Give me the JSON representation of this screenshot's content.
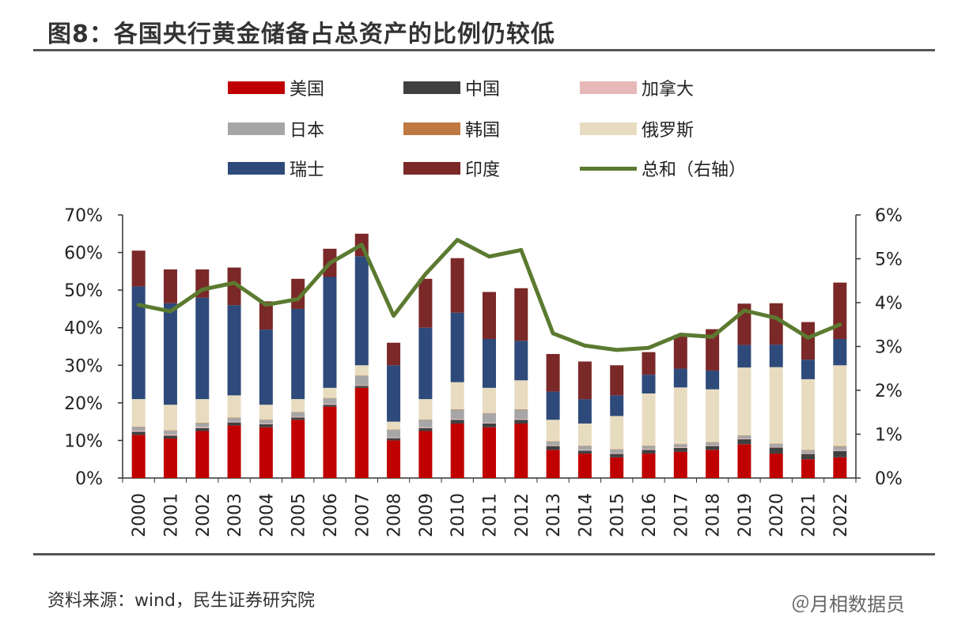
{
  "title": "图8：各国央行黄金储备占总资产的比例仍较低",
  "source": "资料来源：wind，民生证券研究院",
  "watermark": "＠月相数据员",
  "chart_data": {
    "type": "bar",
    "stacked": true,
    "categories": [
      "2000",
      "2001",
      "2002",
      "2003",
      "2004",
      "2005",
      "2006",
      "2007",
      "2008",
      "2009",
      "2010",
      "2011",
      "2012",
      "2013",
      "2014",
      "2015",
      "2016",
      "2017",
      "2018",
      "2019",
      "2020",
      "2021",
      "2022"
    ],
    "left_axis": {
      "min": 0,
      "max": 70,
      "ticks": [
        "0%",
        "10%",
        "20%",
        "30%",
        "40%",
        "50%",
        "60%",
        "70%"
      ]
    },
    "right_axis": {
      "min": 0,
      "max": 6,
      "ticks": [
        "0%",
        "1%",
        "2%",
        "3%",
        "4%",
        "5%",
        "6%"
      ]
    },
    "series": [
      {
        "name": "美国",
        "color": "#c00000",
        "values": [
          11.5,
          10.5,
          12.5,
          14.0,
          13.5,
          15.5,
          19.0,
          24.0,
          10.0,
          12.5,
          14.5,
          13.5,
          14.5,
          7.5,
          6.5,
          5.5,
          6.5,
          7.0,
          7.5,
          9.0,
          6.5,
          5.0,
          5.5
        ]
      },
      {
        "name": "中国",
        "color": "#404040",
        "values": [
          0.8,
          0.8,
          0.8,
          0.8,
          0.8,
          0.6,
          0.5,
          0.5,
          0.6,
          0.8,
          1.0,
          1.0,
          1.0,
          1.0,
          0.8,
          0.9,
          1.0,
          1.0,
          1.0,
          1.3,
          1.6,
          1.4,
          1.7
        ]
      },
      {
        "name": "加拿大",
        "color": "#e6b8b7",
        "values": [
          0.3,
          0.3,
          0.3,
          0.2,
          0.2,
          0.2,
          0.2,
          0.2,
          0.2,
          0.2,
          0.2,
          0.2,
          0.2,
          0.2,
          0.2,
          0.2,
          0.2,
          0.2,
          0.2,
          0.2,
          0.2,
          0.2,
          0.2
        ]
      },
      {
        "name": "日本",
        "color": "#a6a6a6",
        "values": [
          1.0,
          1.0,
          1.0,
          1.0,
          1.0,
          1.2,
          1.5,
          2.5,
          2.0,
          2.0,
          2.5,
          2.5,
          2.5,
          1.0,
          1.0,
          1.0,
          0.8,
          0.8,
          0.8,
          0.8,
          0.8,
          0.8,
          1.0
        ]
      },
      {
        "name": "韩国",
        "color": "#c07841",
        "values": [
          0.1,
          0.1,
          0.1,
          0.1,
          0.1,
          0.1,
          0.1,
          0.1,
          0.1,
          0.1,
          0.1,
          0.1,
          0.1,
          0.1,
          0.1,
          0.1,
          0.1,
          0.1,
          0.1,
          0.1,
          0.1,
          0.1,
          0.1
        ]
      },
      {
        "name": "俄罗斯",
        "color": "#e8dcc0",
        "values": [
          7.3,
          6.8,
          6.3,
          5.9,
          3.9,
          3.4,
          2.7,
          2.7,
          2.1,
          5.4,
          7.2,
          6.7,
          7.7,
          5.7,
          5.9,
          8.8,
          13.9,
          15.0,
          14.0,
          18.0,
          20.3,
          18.8,
          21.5
        ]
      },
      {
        "name": "瑞士",
        "color": "#2e4a7a",
        "values": [
          30.0,
          27.0,
          27.0,
          24.0,
          20.0,
          24.0,
          29.5,
          29.0,
          15.0,
          19.0,
          18.5,
          13.0,
          10.5,
          7.5,
          6.5,
          5.5,
          5.0,
          5.0,
          5.0,
          6.0,
          6.0,
          5.2,
          7.0
        ]
      },
      {
        "name": "印度",
        "color": "#7b2828",
        "values": [
          9.5,
          9.0,
          7.5,
          10.0,
          7.5,
          8.0,
          7.5,
          6.0,
          6.0,
          13.0,
          14.5,
          12.5,
          14.0,
          10.0,
          10.0,
          8.0,
          6.0,
          9.0,
          11.0,
          11.0,
          11.0,
          10.0,
          15.0
        ]
      }
    ],
    "line": {
      "name": "总和（右轴）",
      "color": "#5b7a30",
      "axis": "right",
      "values": [
        3.95,
        3.8,
        4.3,
        4.45,
        3.95,
        4.08,
        4.9,
        5.32,
        3.7,
        4.65,
        5.43,
        5.05,
        5.2,
        3.3,
        3.02,
        2.92,
        2.97,
        3.27,
        3.22,
        3.82,
        3.65,
        3.2,
        3.5
      ]
    }
  }
}
